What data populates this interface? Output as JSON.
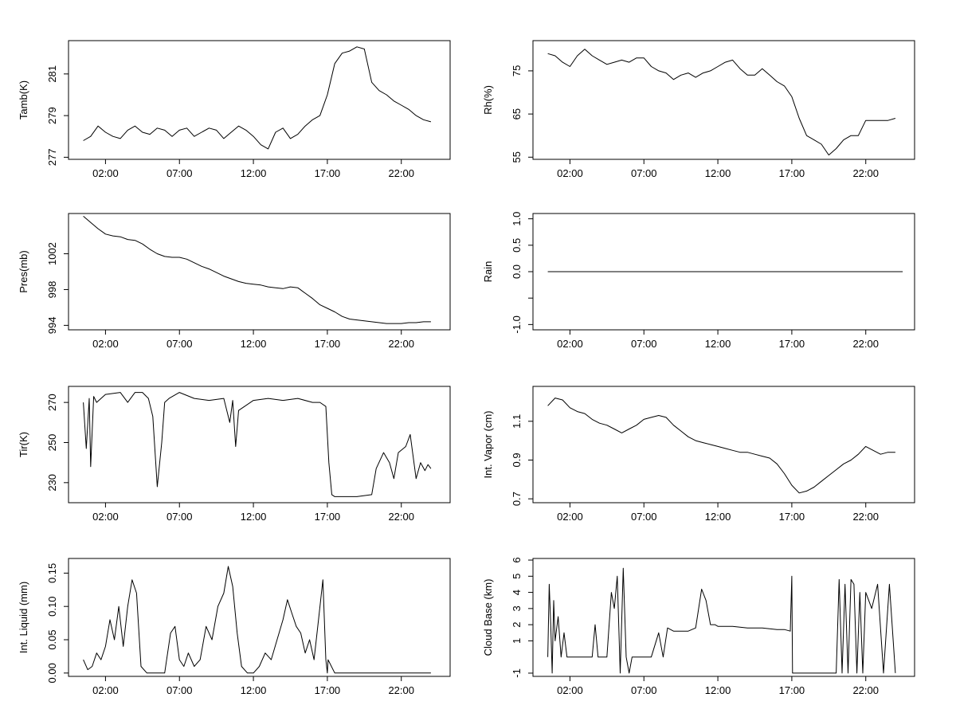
{
  "figure": {
    "x_tick_labels": [
      "02:00",
      "07:00",
      "12:00",
      "17:00",
      "22:00"
    ],
    "x_tick_hours": [
      2,
      7,
      12,
      17,
      22
    ],
    "x_range_hours": [
      -0.5,
      25.3
    ]
  },
  "chart_data": [
    {
      "id": "tamb",
      "type": "line",
      "title": "",
      "xlabel": "",
      "ylabel": "Tamb(K)",
      "ylim": [
        276.9,
        282.6
      ],
      "yticks": [
        277,
        279,
        281
      ],
      "ytick_labels": [
        "277",
        "279",
        "281"
      ],
      "x": [
        0.5,
        1,
        1.5,
        2,
        2.5,
        3,
        3.5,
        4,
        4.5,
        5,
        5.5,
        6,
        6.5,
        7,
        7.5,
        8,
        8.5,
        9,
        9.5,
        10,
        10.5,
        11,
        11.5,
        12,
        12.5,
        13,
        13.5,
        14,
        14.5,
        15,
        15.5,
        16,
        16.5,
        17,
        17.5,
        18,
        18.5,
        19,
        19.5,
        20,
        20.5,
        21,
        21.5,
        22,
        22.5,
        23,
        23.5,
        24
      ],
      "series": [
        {
          "name": "Tamb",
          "values": [
            277.8,
            278.0,
            278.5,
            278.2,
            278.0,
            277.9,
            278.3,
            278.5,
            278.2,
            278.1,
            278.4,
            278.3,
            278.0,
            278.3,
            278.4,
            278.0,
            278.2,
            278.4,
            278.3,
            277.9,
            278.2,
            278.5,
            278.3,
            278.0,
            277.6,
            277.4,
            278.2,
            278.4,
            277.9,
            278.1,
            278.5,
            278.8,
            279.0,
            280.0,
            281.5,
            282.0,
            282.1,
            282.3,
            282.2,
            280.6,
            280.2,
            280.0,
            279.7,
            279.5,
            279.3,
            279.0,
            278.8,
            278.7
          ]
        }
      ]
    },
    {
      "id": "rh",
      "type": "line",
      "title": "",
      "xlabel": "",
      "ylabel": "Rh(%)",
      "ylim": [
        54.5,
        82
      ],
      "yticks": [
        55,
        65,
        75
      ],
      "ytick_labels": [
        "55",
        "65",
        "75"
      ],
      "x": [
        0.5,
        1,
        1.5,
        2,
        2.5,
        3,
        3.5,
        4,
        4.5,
        5,
        5.5,
        6,
        6.5,
        7,
        7.5,
        8,
        8.5,
        9,
        9.5,
        10,
        10.5,
        11,
        11.5,
        12,
        12.5,
        13,
        13.5,
        14,
        14.5,
        15,
        15.5,
        16,
        16.5,
        17,
        17.5,
        18,
        18.5,
        19,
        19.5,
        20,
        20.5,
        21,
        21.5,
        22,
        22.5,
        23,
        23.5,
        24
      ],
      "series": [
        {
          "name": "Rh",
          "values": [
            79.0,
            78.5,
            77.0,
            76.0,
            78.5,
            80.0,
            78.5,
            77.5,
            76.5,
            77.0,
            77.5,
            77.0,
            78.0,
            78.0,
            76.0,
            75.0,
            74.5,
            73.0,
            74.0,
            74.5,
            73.5,
            74.5,
            75.0,
            76.0,
            77.0,
            77.5,
            75.5,
            74.0,
            74.0,
            75.5,
            74.0,
            72.5,
            71.5,
            69.0,
            64.0,
            60.0,
            59.0,
            58.0,
            55.5,
            57.0,
            59.0,
            60.0,
            60.0,
            63.5,
            63.5,
            63.5,
            63.5,
            64.0
          ]
        }
      ]
    },
    {
      "id": "pres",
      "type": "line",
      "title": "",
      "xlabel": "",
      "ylabel": "Pres(mb)",
      "ylim": [
        993.5,
        1006.5
      ],
      "yticks": [
        994,
        998,
        1002
      ],
      "ytick_labels": [
        "994",
        "998",
        "1002"
      ],
      "x": [
        0.5,
        1,
        1.5,
        2,
        2.5,
        3,
        3.5,
        4,
        4.5,
        5,
        5.5,
        6,
        6.5,
        7,
        7.5,
        8,
        8.5,
        9,
        9.5,
        10,
        10.5,
        11,
        11.5,
        12,
        12.5,
        13,
        13.5,
        14,
        14.5,
        15,
        15.5,
        16,
        16.5,
        17,
        17.5,
        18,
        18.5,
        19,
        19.5,
        20,
        20.5,
        21,
        21.5,
        22,
        22.5,
        23,
        23.5,
        24
      ],
      "series": [
        {
          "name": "Pres",
          "values": [
            1006.2,
            1005.5,
            1004.8,
            1004.2,
            1004.0,
            1003.9,
            1003.6,
            1003.5,
            1003.1,
            1002.5,
            1002.0,
            1001.7,
            1001.6,
            1001.6,
            1001.4,
            1001.0,
            1000.6,
            1000.3,
            999.9,
            999.5,
            999.2,
            998.9,
            998.7,
            998.6,
            998.5,
            998.3,
            998.2,
            998.1,
            998.3,
            998.2,
            997.6,
            997.0,
            996.3,
            995.9,
            995.5,
            995.0,
            994.7,
            994.6,
            994.5,
            994.4,
            994.3,
            994.2,
            994.2,
            994.2,
            994.3,
            994.3,
            994.4,
            994.4
          ]
        }
      ]
    },
    {
      "id": "rain",
      "type": "line",
      "title": "",
      "xlabel": "",
      "ylabel": "Rain",
      "ylim": [
        -1.1,
        1.1
      ],
      "yticks": [
        -1.0,
        -0.5,
        0.0,
        0.5,
        1.0
      ],
      "ytick_labels": [
        "-1.0",
        "",
        "0.0",
        "0.5",
        "1.0"
      ],
      "x": [
        0.5,
        24.5
      ],
      "series": [
        {
          "name": "Rain",
          "values": [
            0.0,
            0.0
          ]
        }
      ]
    },
    {
      "id": "tir",
      "type": "line",
      "title": "",
      "xlabel": "",
      "ylabel": "Tir(K)",
      "ylim": [
        220,
        278
      ],
      "yticks": [
        230,
        250,
        270
      ],
      "ytick_labels": [
        "230",
        "250",
        "270"
      ],
      "x": [
        0.5,
        0.7,
        0.9,
        1.0,
        1.2,
        1.4,
        2,
        3,
        3.5,
        4,
        4.5,
        4.9,
        5.2,
        5.5,
        5.8,
        6.0,
        6.3,
        7,
        8,
        9,
        10,
        10.4,
        10.6,
        10.8,
        11.0,
        11.4,
        12,
        13,
        14,
        15,
        16,
        16.5,
        16.9,
        17.1,
        17.3,
        17.5,
        18,
        19,
        20,
        20.3,
        20.8,
        21.2,
        21.5,
        21.8,
        22.3,
        22.6,
        23,
        23.3,
        23.6,
        23.8,
        24
      ],
      "series": [
        {
          "name": "Tir",
          "values": [
            270,
            247,
            272,
            238,
            273,
            270,
            274,
            275,
            270,
            275,
            275,
            272,
            263,
            228,
            250,
            270,
            272,
            275,
            272,
            271,
            272,
            260,
            271,
            248,
            266,
            268,
            271,
            272,
            271,
            272,
            270,
            270,
            268,
            240,
            224,
            223,
            223,
            223,
            224,
            237,
            245,
            240,
            232,
            245,
            248,
            254,
            232,
            240,
            236,
            239,
            237
          ]
        }
      ]
    },
    {
      "id": "vapor",
      "type": "line",
      "title": "",
      "xlabel": "",
      "ylabel": "Int. Vapor (cm)",
      "ylim": [
        0.68,
        1.28
      ],
      "yticks": [
        0.7,
        0.9,
        1.1
      ],
      "ytick_labels": [
        "0.7",
        "0.9",
        "1.1"
      ],
      "x": [
        0.5,
        1,
        1.5,
        2,
        2.5,
        3,
        3.5,
        4,
        4.5,
        5,
        5.5,
        6,
        6.5,
        7,
        7.5,
        8,
        8.5,
        9,
        9.5,
        10,
        10.5,
        11,
        11.5,
        12,
        12.5,
        13,
        13.5,
        14,
        14.5,
        15,
        15.5,
        16,
        16.5,
        17,
        17.5,
        18,
        18.5,
        19,
        19.5,
        20,
        20.5,
        21,
        21.5,
        22,
        22.5,
        23,
        23.5,
        24
      ],
      "series": [
        {
          "name": "Int. Vapor",
          "values": [
            1.18,
            1.22,
            1.21,
            1.17,
            1.15,
            1.14,
            1.11,
            1.09,
            1.08,
            1.06,
            1.04,
            1.06,
            1.08,
            1.11,
            1.12,
            1.13,
            1.12,
            1.08,
            1.05,
            1.02,
            1.0,
            0.99,
            0.98,
            0.97,
            0.96,
            0.95,
            0.94,
            0.94,
            0.93,
            0.92,
            0.91,
            0.88,
            0.83,
            0.77,
            0.73,
            0.74,
            0.76,
            0.79,
            0.82,
            0.85,
            0.88,
            0.9,
            0.93,
            0.97,
            0.95,
            0.93,
            0.94,
            0.94
          ]
        }
      ]
    },
    {
      "id": "liquid",
      "type": "line",
      "title": "",
      "xlabel": "",
      "ylabel": "Int. Liquid (mm)",
      "ylim": [
        -0.005,
        0.172
      ],
      "yticks": [
        0.0,
        0.05,
        0.1,
        0.15
      ],
      "ytick_labels": [
        "0.00",
        "0.05",
        "0.10",
        "0.15"
      ],
      "x": [
        0.5,
        0.8,
        1.1,
        1.4,
        1.7,
        2.0,
        2.3,
        2.6,
        2.9,
        3.2,
        3.5,
        3.8,
        4.1,
        4.4,
        4.8,
        5.5,
        6.0,
        6.4,
        6.7,
        7.0,
        7.3,
        7.6,
        8.0,
        8.4,
        8.8,
        9.2,
        9.6,
        10.0,
        10.3,
        10.6,
        10.9,
        11.2,
        11.6,
        12.0,
        12.4,
        12.8,
        13.2,
        13.6,
        14.0,
        14.3,
        14.6,
        14.9,
        15.2,
        15.5,
        15.8,
        16.1,
        16.4,
        16.7,
        16.9,
        17.0,
        17.05,
        17.5,
        20,
        22,
        24
      ],
      "series": [
        {
          "name": "Int. Liquid",
          "values": [
            0.02,
            0.005,
            0.01,
            0.03,
            0.02,
            0.04,
            0.08,
            0.05,
            0.1,
            0.04,
            0.1,
            0.14,
            0.12,
            0.01,
            0.0,
            0.0,
            0.0,
            0.06,
            0.07,
            0.02,
            0.01,
            0.03,
            0.01,
            0.02,
            0.07,
            0.05,
            0.1,
            0.12,
            0.16,
            0.13,
            0.06,
            0.01,
            0.0,
            0.0,
            0.01,
            0.03,
            0.02,
            0.05,
            0.08,
            0.11,
            0.09,
            0.07,
            0.06,
            0.03,
            0.05,
            0.02,
            0.08,
            0.14,
            0.02,
            0.0,
            0.02,
            0.0,
            0.0,
            0.0,
            0.0
          ]
        }
      ]
    },
    {
      "id": "cloudbase",
      "type": "line",
      "title": "",
      "xlabel": "",
      "ylabel": "Cloud Base (km)",
      "ylim": [
        -1.2,
        6.1
      ],
      "yticks": [
        -1,
        1,
        2,
        3,
        4,
        5,
        6
      ],
      "ytick_labels": [
        "-1",
        "1",
        "2",
        "3",
        "4",
        "5",
        "6"
      ],
      "x": [
        0.5,
        0.6,
        0.7,
        0.8,
        0.9,
        1.0,
        1.2,
        1.4,
        1.6,
        1.8,
        2,
        3,
        3.5,
        3.7,
        3.9,
        4.0,
        4.5,
        4.8,
        5.0,
        5.2,
        5.4,
        5.6,
        5.8,
        6.0,
        6.2,
        6.5,
        7,
        7.5,
        8,
        8.3,
        8.6,
        9,
        10,
        10.5,
        10.9,
        11.2,
        11.5,
        11.8,
        12,
        13,
        14,
        15,
        16,
        16.5,
        16.9,
        17.0,
        17.05,
        17.5,
        18,
        19,
        20,
        20.2,
        20.4,
        20.6,
        20.8,
        21.0,
        21.2,
        21.4,
        21.6,
        21.8,
        22,
        22.4,
        22.8,
        23.2,
        23.6,
        24
      ],
      "series": [
        {
          "name": "Cloud Base",
          "values": [
            0.0,
            4.5,
            2.0,
            -1.0,
            3.5,
            1.0,
            2.5,
            0.0,
            1.5,
            0.0,
            0.0,
            0.0,
            0.0,
            2.0,
            0.0,
            0.0,
            0.0,
            4.0,
            3.0,
            5.0,
            -1.0,
            5.5,
            0.0,
            -1.0,
            0.0,
            0.0,
            0.0,
            0.0,
            1.5,
            0.0,
            1.8,
            1.6,
            1.6,
            1.8,
            4.2,
            3.5,
            2.0,
            2.0,
            1.9,
            1.9,
            1.8,
            1.8,
            1.7,
            1.7,
            1.6,
            5.0,
            -1.0,
            -1.0,
            -1.0,
            -1.0,
            -1.0,
            4.8,
            -1.0,
            4.5,
            -1.0,
            4.8,
            4.5,
            -1.0,
            4.0,
            -1.0,
            4.0,
            3.0,
            4.5,
            -1.0,
            4.5,
            -1.0
          ]
        }
      ]
    }
  ]
}
